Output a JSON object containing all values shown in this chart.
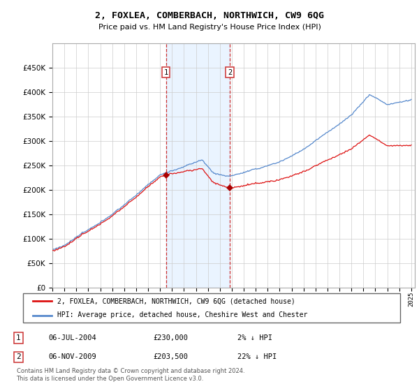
{
  "title": "2, FOXLEA, COMBERBACH, NORTHWICH, CW9 6QG",
  "subtitle": "Price paid vs. HM Land Registry's House Price Index (HPI)",
  "legend_line1": "2, FOXLEA, COMBERBACH, NORTHWICH, CW9 6QG (detached house)",
  "legend_line2": "HPI: Average price, detached house, Cheshire West and Chester",
  "footer": "Contains HM Land Registry data © Crown copyright and database right 2024.\nThis data is licensed under the Open Government Licence v3.0.",
  "sale1_date": "06-JUL-2004",
  "sale1_price": "£230,000",
  "sale1_hpi": "2% ↓ HPI",
  "sale1_year": 2004.5,
  "sale1_value": 230000,
  "sale2_date": "06-NOV-2009",
  "sale2_price": "£203,500",
  "sale2_hpi": "22% ↓ HPI",
  "sale2_year": 2009.84,
  "sale2_value": 203500,
  "hpi_color": "#5588cc",
  "price_color": "#dd1111",
  "marker_color": "#aa0000",
  "shade_color": "#ddeeff",
  "vline_color": "#cc3333",
  "ylim_min": 0,
  "ylim_max": 500000,
  "background_color": "#ffffff",
  "grid_color": "#cccccc"
}
